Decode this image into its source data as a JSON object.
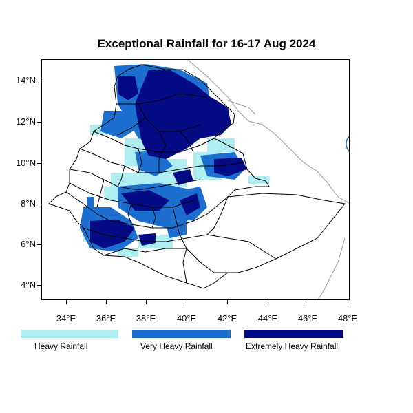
{
  "title": "Exceptional Rainfall for 16-17 Aug 2024",
  "axes": {
    "lat_ticks": [
      "14°N",
      "12°N",
      "10°N",
      "8°N",
      "6°N",
      "4°N"
    ],
    "lon_ticks": [
      "34°E",
      "36°E",
      "38°E",
      "40°E",
      "42°E",
      "44°E",
      "46°E",
      "48°E"
    ]
  },
  "colors": {
    "heavy": "#aeeef0",
    "very_heavy": "#1d6fcf",
    "extremely_heavy": "#050b85",
    "border": "#000000",
    "neighbor_border": "#999999"
  },
  "legend": [
    {
      "label": "Heavy Rainfall",
      "color": "#aeeef0"
    },
    {
      "label": "Very Heavy Rainfall",
      "color": "#1d6fcf"
    },
    {
      "label": "Extremely Heavy Rainfall",
      "color": "#050b85"
    }
  ],
  "logo": {
    "icon": "ethiopian-meteorology-institute-logo"
  }
}
